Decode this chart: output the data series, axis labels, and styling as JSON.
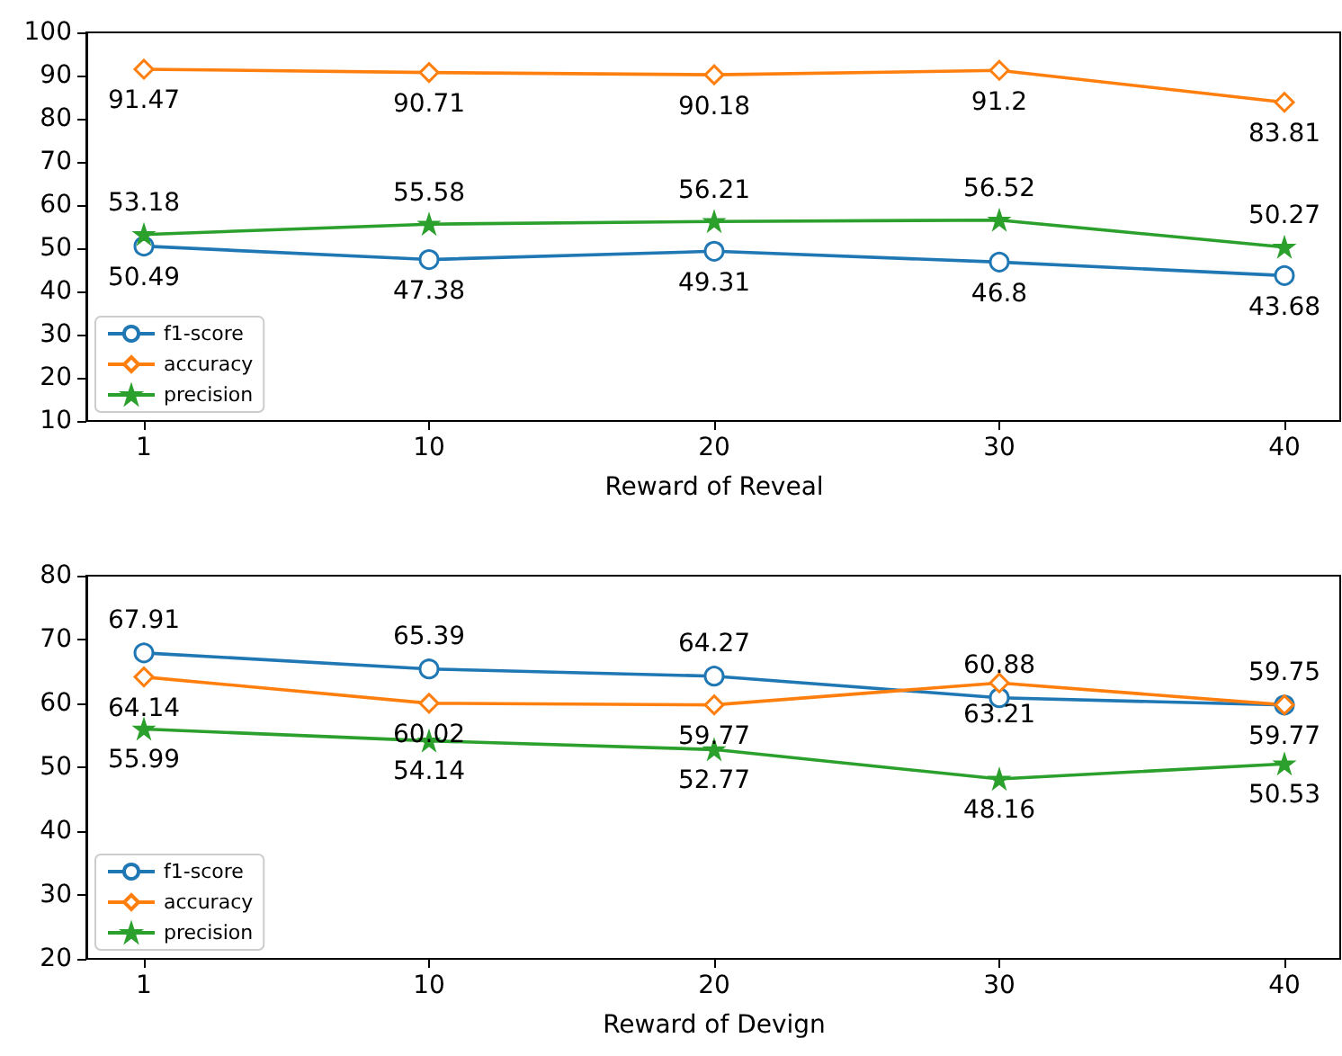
{
  "chart_data": [
    {
      "type": "line",
      "xlabel": "Reward of Reveal",
      "categories": [
        "1",
        "10",
        "20",
        "30",
        "40"
      ],
      "ylim": [
        10,
        100
      ],
      "yticks": [
        10,
        20,
        30,
        40,
        50,
        60,
        70,
        80,
        90,
        100
      ],
      "grid": false,
      "legend": "bottom left",
      "data_labels": true,
      "series": [
        {
          "name": "f1-score",
          "color": "#1f77b4",
          "marker": "circle",
          "values": [
            50.49,
            47.38,
            49.31,
            46.8,
            43.68
          ]
        },
        {
          "name": "accuracy",
          "color": "#ff7f0e",
          "marker": "diamond",
          "values": [
            91.47,
            90.71,
            90.18,
            91.2,
            83.81
          ]
        },
        {
          "name": "precision",
          "color": "#2ca02c",
          "marker": "star",
          "values": [
            53.18,
            55.58,
            56.21,
            56.52,
            50.27
          ]
        }
      ]
    },
    {
      "type": "line",
      "xlabel": "Reward of Devign",
      "categories": [
        "1",
        "10",
        "20",
        "30",
        "40"
      ],
      "ylim": [
        20,
        80
      ],
      "yticks": [
        20,
        30,
        40,
        50,
        60,
        70,
        80
      ],
      "grid": false,
      "legend": "bottom left",
      "data_labels": true,
      "series": [
        {
          "name": "f1-score",
          "color": "#1f77b4",
          "marker": "circle",
          "values": [
            67.91,
            65.39,
            64.27,
            60.88,
            59.75
          ]
        },
        {
          "name": "accuracy",
          "color": "#ff7f0e",
          "marker": "diamond",
          "values": [
            64.14,
            60.02,
            59.77,
            63.21,
            59.77
          ]
        },
        {
          "name": "precision",
          "color": "#2ca02c",
          "marker": "star",
          "values": [
            55.99,
            54.14,
            52.77,
            48.16,
            50.53
          ]
        }
      ]
    }
  ]
}
